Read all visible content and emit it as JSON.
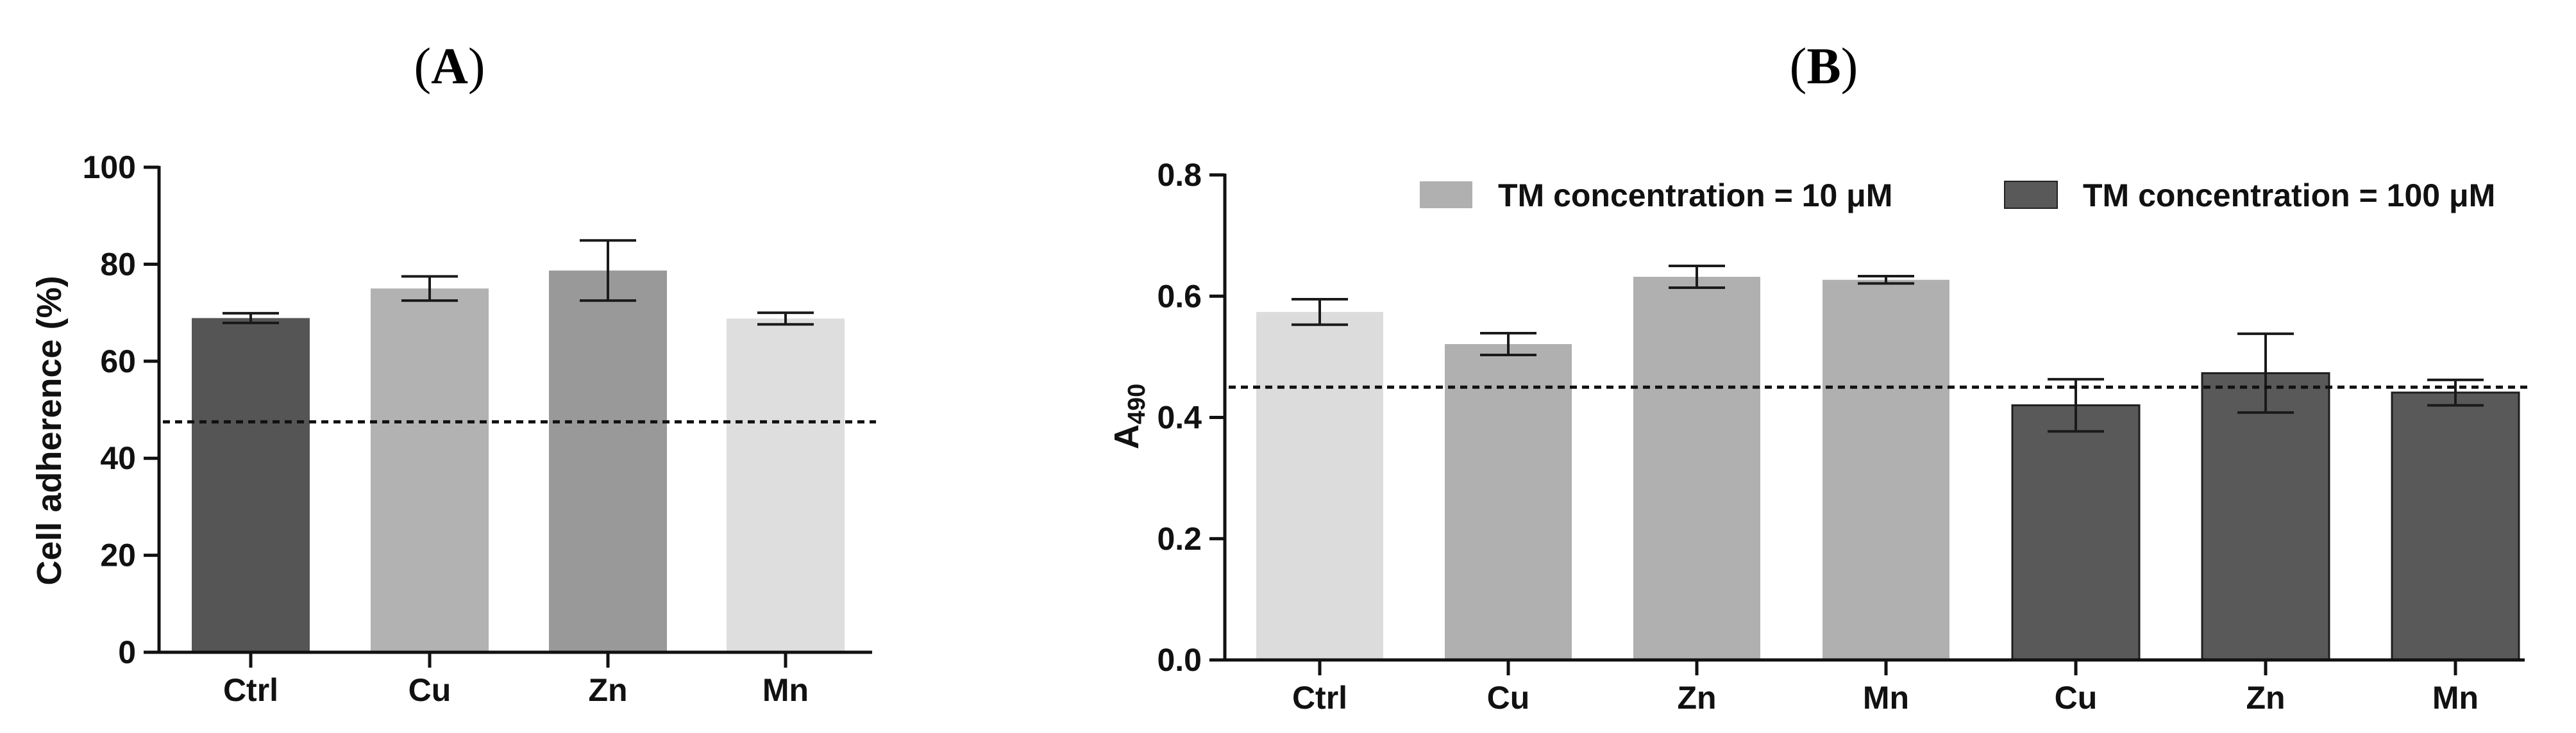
{
  "chart_data": [
    {
      "panel_label": "A",
      "type": "bar",
      "categories": [
        "Ctrl",
        "Cu",
        "Zn",
        "Mn"
      ],
      "values": [
        68.9,
        75.0,
        78.7,
        68.8
      ],
      "errors": [
        1.0,
        2.5,
        6.2,
        1.2
      ],
      "colors": [
        "#555555",
        "#b2b2b2",
        "#999999",
        "#dedede"
      ],
      "ylabel": "Cell adherence  (%)",
      "ylim": [
        0,
        100
      ],
      "yticks": [
        "0",
        "20",
        "40",
        "60",
        "80",
        "100"
      ],
      "reference_line": 47.5,
      "grid": false
    },
    {
      "panel_label": "B",
      "type": "bar",
      "categories": [
        "Ctrl",
        "Cu",
        "Zn",
        "Mn",
        "Cu",
        "Zn",
        "Mn"
      ],
      "values": [
        0.574,
        0.521,
        0.632,
        0.627,
        0.42,
        0.473,
        0.441
      ],
      "errors": [
        0.021,
        0.018,
        0.018,
        0.006,
        0.043,
        0.065,
        0.021
      ],
      "colors": [
        "#dcdcdc",
        "#b0b0b0",
        "#b0b0b0",
        "#b0b0b0",
        "#595959",
        "#595959",
        "#595959"
      ],
      "ylabel": {
        "base": "A",
        "sub": "490"
      },
      "ylim": [
        0,
        0.8
      ],
      "yticks": [
        "0.0",
        "0.2",
        "0.4",
        "0.6",
        "0.8"
      ],
      "reference_line": 0.45,
      "grid": false,
      "legend": [
        {
          "label": "TM concentration = 10 μM",
          "color": "#b0b0b0"
        },
        {
          "label": "TM concentration = 100 μM",
          "color": "#595959"
        }
      ],
      "legend_placement": "top"
    }
  ]
}
